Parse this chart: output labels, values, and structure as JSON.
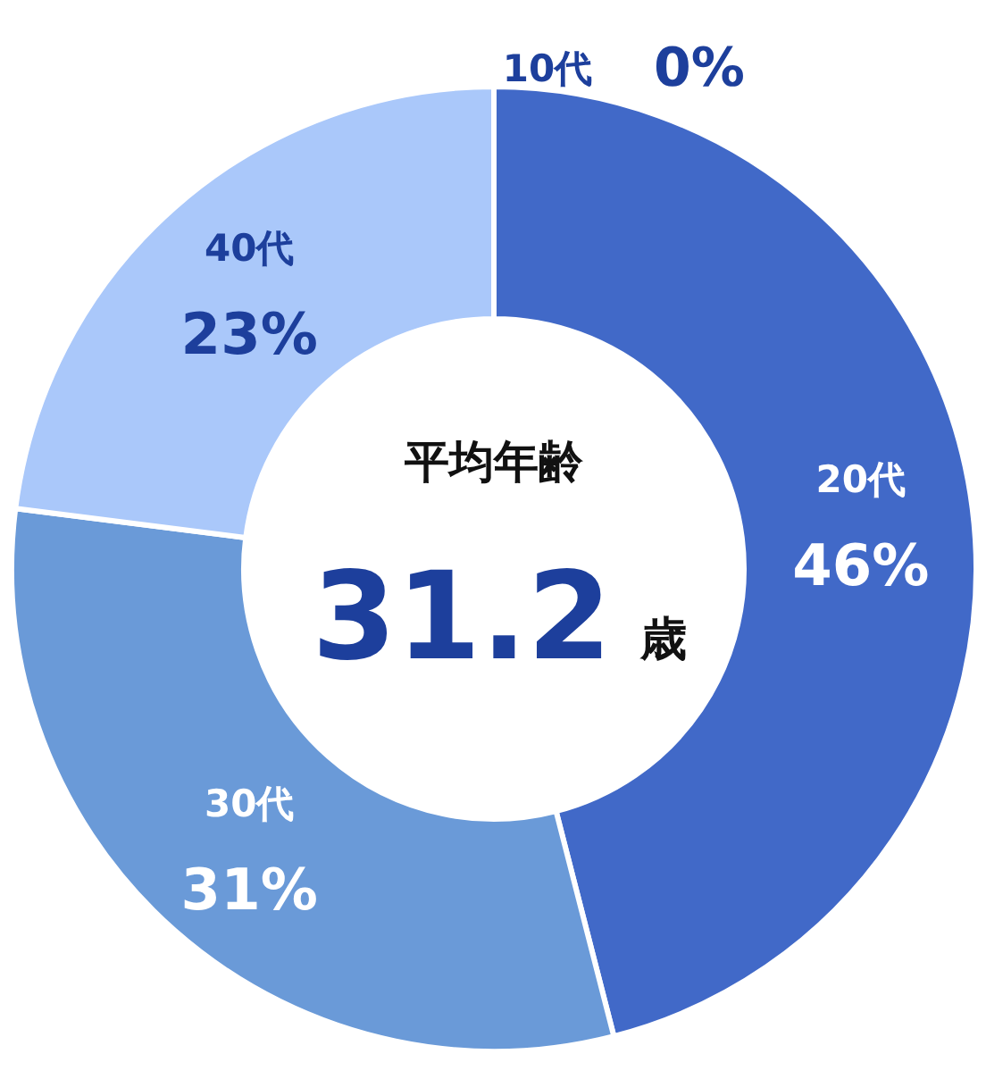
{
  "chart_data": {
    "type": "donut",
    "title": "平均年齢",
    "categories": [
      "10代",
      "20代",
      "30代",
      "40代"
    ],
    "values": [
      0,
      46,
      31,
      23
    ],
    "value_labels": [
      "0%",
      "46%",
      "31%",
      "23%"
    ],
    "colors": [
      "#2a52b0",
      "#4169c8",
      "#6a9ad8",
      "#aac8fa"
    ],
    "annotations": [
      "31.2",
      "歳"
    ]
  }
}
